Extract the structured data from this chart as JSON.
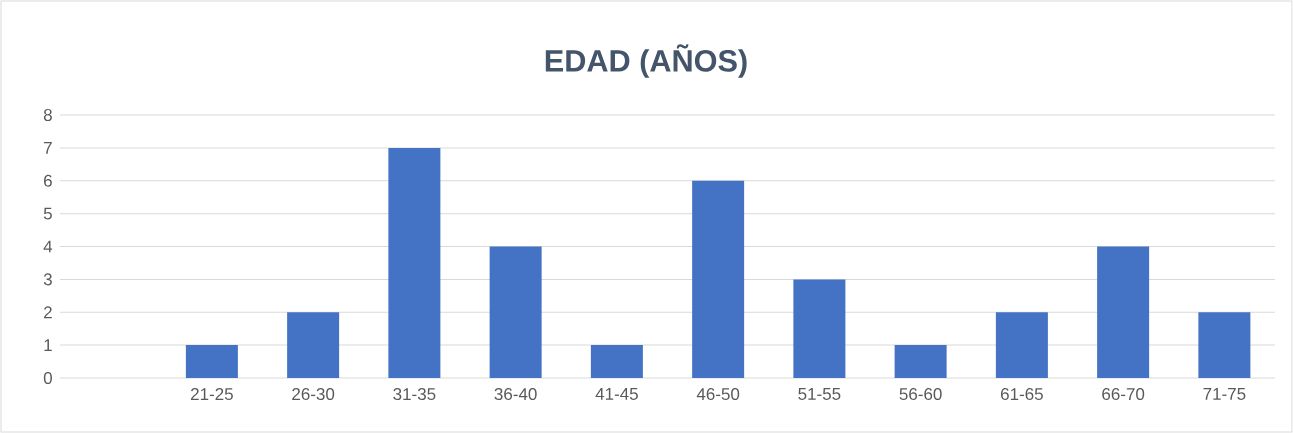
{
  "chart_data": {
    "type": "bar",
    "title": "EDAD (AÑOS)",
    "categories": [
      null,
      "21-25",
      "26-30",
      "31-35",
      "36-40",
      "41-45",
      "46-50",
      "51-55",
      "56-60",
      "61-65",
      "66-70",
      "71-75"
    ],
    "values": [
      null,
      1,
      2,
      7,
      4,
      1,
      6,
      3,
      1,
      2,
      4,
      2
    ],
    "color": "#4472c4",
    "ylim": [
      0,
      8
    ],
    "yticks": [
      0,
      1,
      2,
      3,
      4,
      5,
      6,
      7,
      8
    ],
    "grid": "y"
  }
}
